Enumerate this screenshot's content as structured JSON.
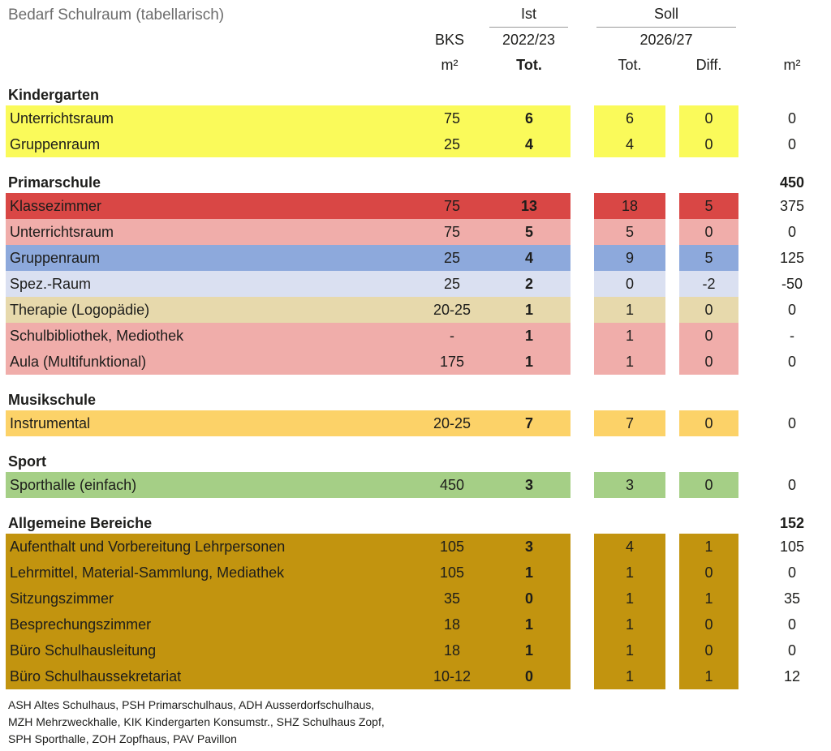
{
  "title": "Bedarf Schulraum (tabellarisch)",
  "header": {
    "ist_group": "Ist",
    "soll_group": "Soll",
    "bks_label": "BKS",
    "ist_period": "2022/23",
    "soll_period": "2026/27",
    "bks_unit": "m²",
    "ist_tot_label": "Tot.",
    "soll_tot_label": "Tot.",
    "diff_label": "Diff.",
    "m2_label": "m²"
  },
  "columns": [
    "label",
    "bks",
    "ist",
    "soll",
    "diff",
    "m2"
  ],
  "sections": [
    {
      "name": "Kindergarten",
      "total_m2": "",
      "rows": [
        {
          "label": "Unterrichtsraum",
          "bks": "75",
          "ist": "6",
          "soll": "6",
          "diff": "0",
          "m2": "0",
          "color": "#fafa5a"
        },
        {
          "label": "Gruppenraum",
          "bks": "25",
          "ist": "4",
          "soll": "4",
          "diff": "0",
          "m2": "0",
          "color": "#fafa5a"
        }
      ]
    },
    {
      "name": "Primarschule",
      "total_m2": "450",
      "rows": [
        {
          "label": "Klassezimmer",
          "bks": "75",
          "ist": "13",
          "soll": "18",
          "diff": "5",
          "m2": "375",
          "color": "#d94745"
        },
        {
          "label": "Unterrichtsraum",
          "bks": "75",
          "ist": "5",
          "soll": "5",
          "diff": "0",
          "m2": "0",
          "color": "#f0adaa"
        },
        {
          "label": "Gruppenraum",
          "bks": "25",
          "ist": "4",
          "soll": "9",
          "diff": "5",
          "m2": "125",
          "color": "#8da9dc"
        },
        {
          "label": "Spez.-Raum",
          "bks": "25",
          "ist": "2",
          "soll": "0",
          "diff": "-2",
          "m2": "-50",
          "color": "#dae0f1"
        },
        {
          "label": "Therapie (Logopädie)",
          "bks": "20-25",
          "ist": "1",
          "soll": "1",
          "diff": "0",
          "m2": "0",
          "color": "#e7d9ac"
        },
        {
          "label": "Schulbibliothek, Mediothek",
          "bks": "-",
          "ist": "1",
          "soll": "1",
          "diff": "0",
          "m2": "-",
          "color": "#f0adaa"
        },
        {
          "label": "Aula (Multifunktional)",
          "bks": "175",
          "ist": "1",
          "soll": "1",
          "diff": "0",
          "m2": "0",
          "color": "#f0adaa"
        }
      ]
    },
    {
      "name": "Musikschule",
      "total_m2": "",
      "rows": [
        {
          "label": "Instrumental",
          "bks": "20-25",
          "ist": "7",
          "soll": "7",
          "diff": "0",
          "m2": "0",
          "color": "#fcd268"
        }
      ]
    },
    {
      "name": "Sport",
      "total_m2": "",
      "rows": [
        {
          "label": "Sporthalle (einfach)",
          "bks": "450",
          "ist": "3",
          "soll": "3",
          "diff": "0",
          "m2": "0",
          "color": "#a5cf86"
        }
      ]
    },
    {
      "name": "Allgemeine Bereiche",
      "total_m2": "152",
      "rows": [
        {
          "label": "Aufenthalt und Vorbereitung Lehrpersonen",
          "bks": "105",
          "ist": "3",
          "soll": "4",
          "diff": "1",
          "m2": "105",
          "color": "#c2940f"
        },
        {
          "label": "Lehrmittel, Material-Sammlung, Mediathek",
          "bks": "105",
          "ist": "1",
          "soll": "1",
          "diff": "0",
          "m2": "0",
          "color": "#c2940f"
        },
        {
          "label": "Sitzungszimmer",
          "bks": "35",
          "ist": "0",
          "soll": "1",
          "diff": "1",
          "m2": "35",
          "color": "#c2940f"
        },
        {
          "label": "Besprechungszimmer",
          "bks": "18",
          "ist": "1",
          "soll": "1",
          "diff": "0",
          "m2": "0",
          "color": "#c2940f"
        },
        {
          "label": "Büro Schulhausleitung",
          "bks": "18",
          "ist": "1",
          "soll": "1",
          "diff": "0",
          "m2": "0",
          "color": "#c2940f"
        },
        {
          "label": "Büro Schulhaussekretariat",
          "bks": "10-12",
          "ist": "0",
          "soll": "1",
          "diff": "1",
          "m2": "12",
          "color": "#c2940f"
        }
      ]
    }
  ],
  "footnote": {
    "lines": [
      "ASH Altes Schulhaus, PSH Primarschulhaus, ADH Ausserdorfschulhaus,",
      "MZH Mehrzweckhalle, KIK Kindergarten Konsumstr., SHZ Schulhaus Zopf,",
      "SPH Sporthalle, ZOH Zopfhaus, PAV Pavillon"
    ]
  }
}
